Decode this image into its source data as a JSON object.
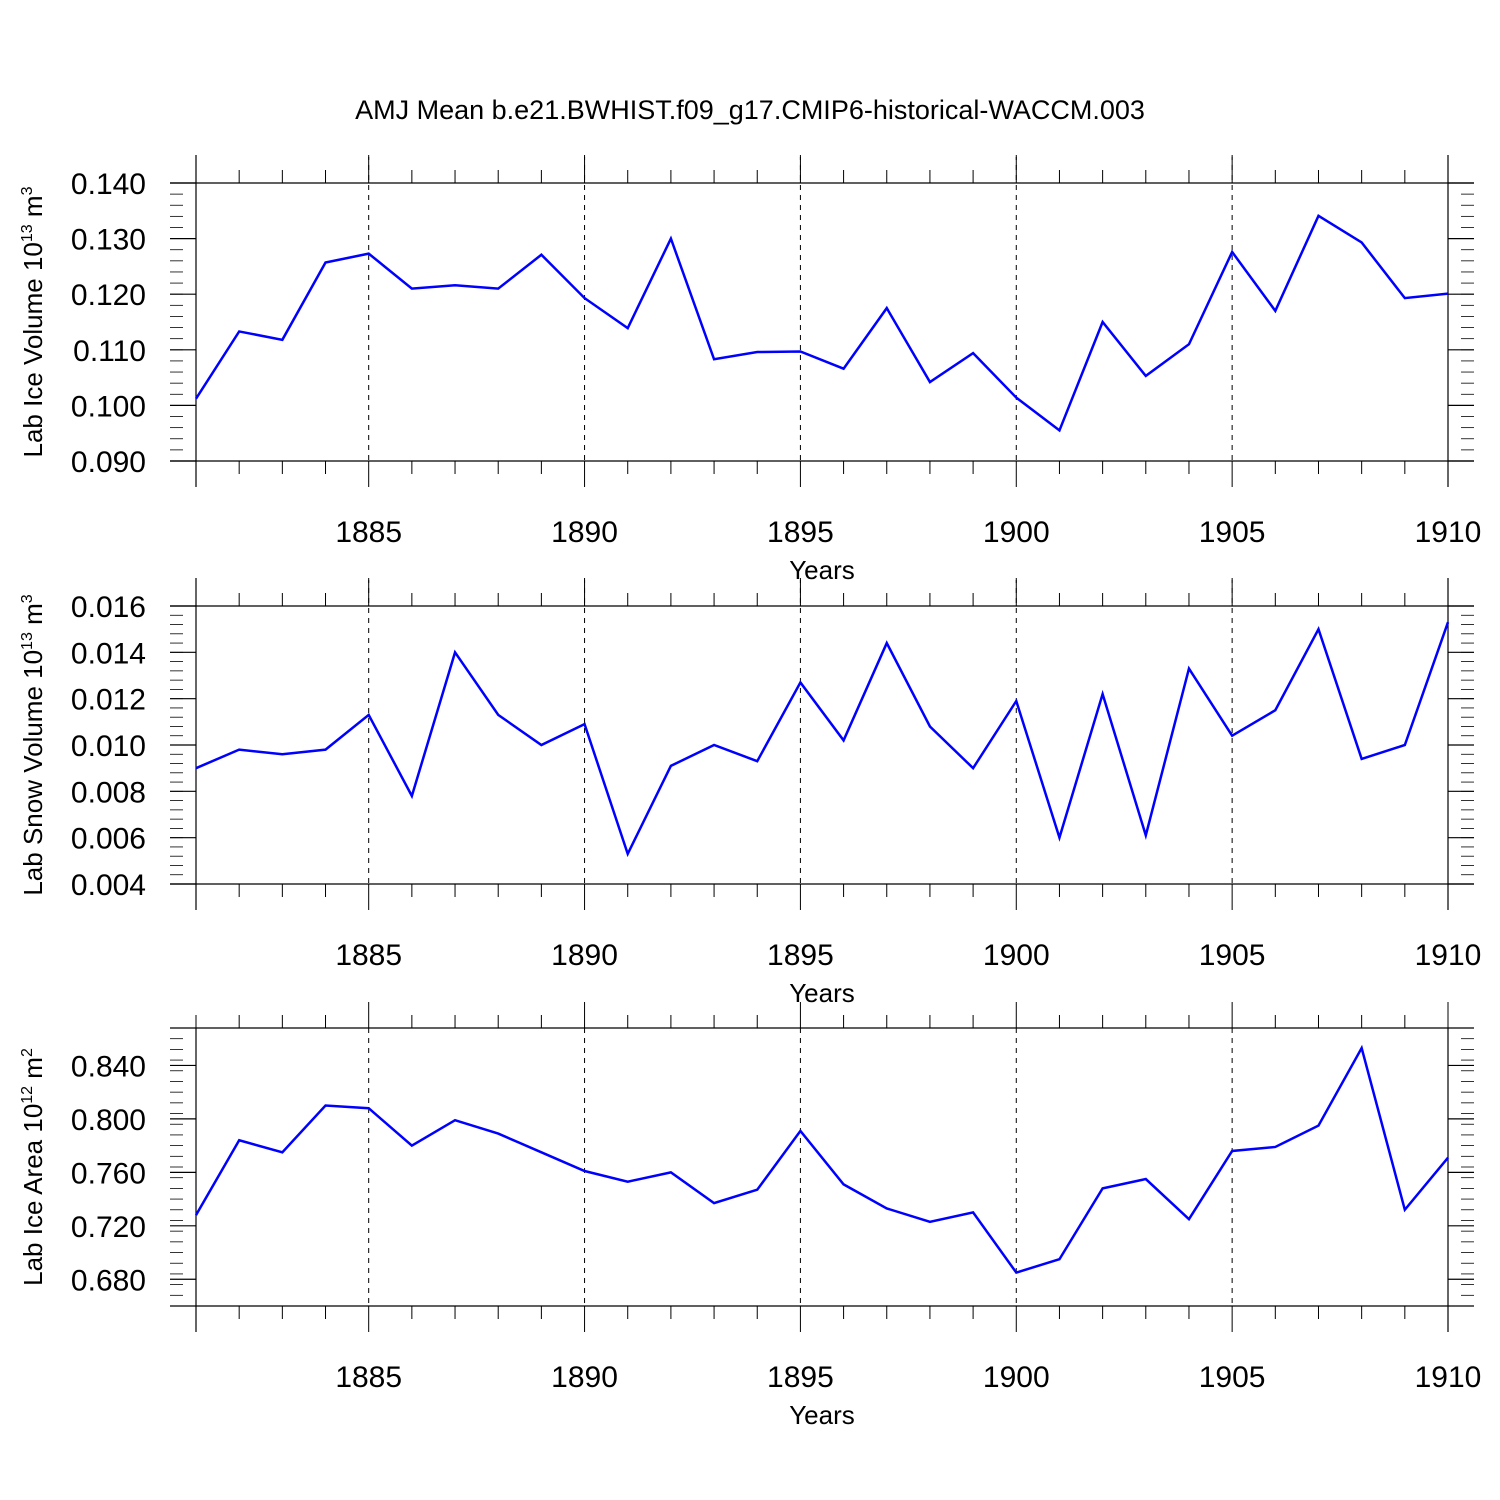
{
  "chart_data": {
    "type": "line",
    "title": "AMJ Mean b.e21.BWHIST.f09_g17.CMIP6-historical-WACCM.003",
    "line_color": "#0000ff",
    "years": [
      1881,
      1882,
      1883,
      1884,
      1885,
      1886,
      1887,
      1888,
      1889,
      1890,
      1891,
      1892,
      1893,
      1894,
      1895,
      1896,
      1897,
      1898,
      1899,
      1900,
      1901,
      1902,
      1903,
      1904,
      1905,
      1906,
      1907,
      1908,
      1909,
      1910
    ],
    "xlim": [
      1881,
      1910
    ],
    "xticks": [
      "1885",
      "1890",
      "1895",
      "1900",
      "1905",
      "1910"
    ],
    "panels": [
      {
        "name": "lab-ice-volume",
        "xlabel": "Years",
        "ylabel_main": "Lab Ice Volume 10",
        "ylabel_exp": "13",
        "ylabel_unit": " m",
        "ylabel_unit_exp": "3",
        "ylim": [
          0.09,
          0.14
        ],
        "yticks": [
          "0.090",
          "0.100",
          "0.110",
          "0.120",
          "0.130",
          "0.140"
        ],
        "values": [
          0.1012,
          0.1133,
          0.1118,
          0.1257,
          0.1273,
          0.121,
          0.1216,
          0.121,
          0.1271,
          0.1193,
          0.1139,
          0.13,
          0.1083,
          0.1096,
          0.1097,
          0.1066,
          0.1175,
          0.1042,
          0.1094,
          0.1014,
          0.0955,
          0.115,
          0.1053,
          0.111,
          0.1276,
          0.117,
          0.1341,
          0.1293,
          0.1193,
          0.1201
        ]
      },
      {
        "name": "lab-snow-volume",
        "xlabel": "Years",
        "ylabel_main": "Lab Snow Volume 10",
        "ylabel_exp": "13",
        "ylabel_unit": " m",
        "ylabel_unit_exp": "3",
        "ylim": [
          0.004,
          0.016
        ],
        "yticks": [
          "0.004",
          "0.006",
          "0.008",
          "0.010",
          "0.012",
          "0.014",
          "0.016"
        ],
        "values": [
          0.009,
          0.0098,
          0.0096,
          0.0098,
          0.0113,
          0.0078,
          0.014,
          0.0113,
          0.01,
          0.0109,
          0.0053,
          0.0091,
          0.01,
          0.0093,
          0.0127,
          0.0102,
          0.0144,
          0.0108,
          0.009,
          0.0119,
          0.006,
          0.0122,
          0.0061,
          0.0133,
          0.0104,
          0.0115,
          0.015,
          0.0094,
          0.01,
          0.0153
        ]
      },
      {
        "name": "lab-ice-area",
        "xlabel": "Years",
        "ylabel_main": "Lab Ice Area 10",
        "ylabel_exp": "12",
        "ylabel_unit": " m",
        "ylabel_unit_exp": "2",
        "ylim": [
          0.66,
          0.868
        ],
        "yticks": [
          "0.680",
          "0.720",
          "0.760",
          "0.800",
          "0.840"
        ],
        "values": [
          0.728,
          0.784,
          0.775,
          0.81,
          0.808,
          0.78,
          0.799,
          0.789,
          0.775,
          0.761,
          0.753,
          0.76,
          0.737,
          0.747,
          0.791,
          0.751,
          0.733,
          0.723,
          0.73,
          0.685,
          0.695,
          0.748,
          0.755,
          0.725,
          0.776,
          0.779,
          0.795,
          0.853,
          0.732,
          0.771
        ]
      }
    ]
  }
}
